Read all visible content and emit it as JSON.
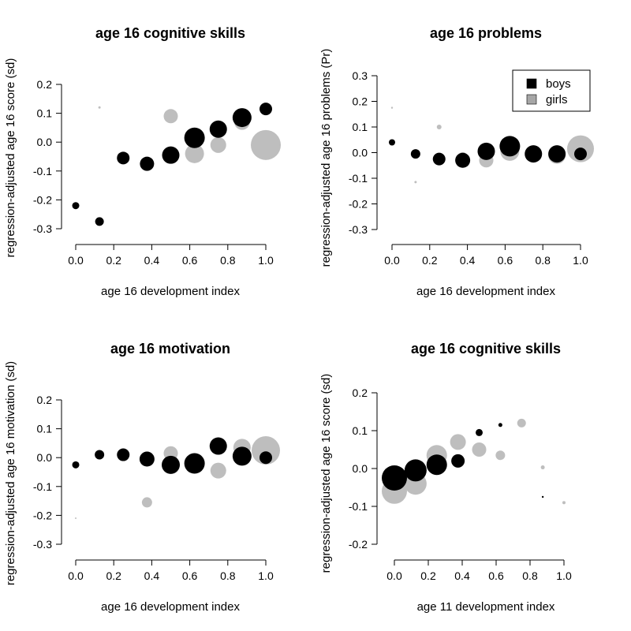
{
  "chart_data": [
    {
      "type": "scatter",
      "title": "age 16 cognitive skills",
      "xlabel": "age 16 development index",
      "ylabel": "regression-adjusted age 16 score (sd)",
      "xlim": [
        0,
        1
      ],
      "ylim": [
        -0.3,
        0.2
      ],
      "xticks": [
        0,
        0.2,
        0.4,
        0.6,
        0.8,
        1
      ],
      "xtick_labels": [
        "0.0",
        "0.2",
        "0.4",
        "0.6",
        "0.8",
        "1.0"
      ],
      "yticks": [
        -0.3,
        -0.2,
        -0.1,
        0,
        0.1,
        0.2
      ],
      "ytick_labels": [
        "-0.3",
        "-0.2",
        "-0.1",
        "0.0",
        "0.1",
        "0.2"
      ],
      "grid": false,
      "legend": null,
      "series": [
        {
          "color": "#bebebe",
          "points": [
            {
              "x": 0.125,
              "y": 0.12,
              "size": 1.5
            },
            {
              "x": 0.5,
              "y": 0.09,
              "size": 9
            },
            {
              "x": 0.625,
              "y": -0.04,
              "size": 12
            },
            {
              "x": 0.75,
              "y": -0.01,
              "size": 10
            },
            {
              "x": 0.875,
              "y": 0.07,
              "size": 10
            },
            {
              "x": 1.0,
              "y": -0.01,
              "size": 19
            }
          ]
        },
        {
          "color": "#000000",
          "points": [
            {
              "x": 0.0,
              "y": -0.22,
              "size": 4.5
            },
            {
              "x": 0.125,
              "y": -0.275,
              "size": 5.5
            },
            {
              "x": 0.25,
              "y": -0.055,
              "size": 8
            },
            {
              "x": 0.375,
              "y": -0.075,
              "size": 9
            },
            {
              "x": 0.5,
              "y": -0.045,
              "size": 11
            },
            {
              "x": 0.625,
              "y": 0.015,
              "size": 13
            },
            {
              "x": 0.75,
              "y": 0.045,
              "size": 11
            },
            {
              "x": 0.875,
              "y": 0.085,
              "size": 12
            },
            {
              "x": 1.0,
              "y": 0.115,
              "size": 8
            }
          ]
        }
      ]
    },
    {
      "type": "scatter",
      "title": "age 16 problems",
      "xlabel": "age 16 development index",
      "ylabel": "regression-adjusted age 16 problems (Pr)",
      "xlim": [
        0,
        1
      ],
      "ylim": [
        -0.3,
        0.3
      ],
      "xticks": [
        0,
        0.2,
        0.4,
        0.6,
        0.8,
        1
      ],
      "xtick_labels": [
        "0.0",
        "0.2",
        "0.4",
        "0.6",
        "0.8",
        "1.0"
      ],
      "yticks": [
        -0.3,
        -0.2,
        -0.1,
        0,
        0.1,
        0.2,
        0.3
      ],
      "ytick_labels": [
        "-0.3",
        "-0.2",
        "-0.1",
        "0.0",
        "0.1",
        "0.2",
        "0.3"
      ],
      "grid": false,
      "legend": {
        "placement": "top-right",
        "entries": [
          {
            "label": "boys",
            "color": "#000000"
          },
          {
            "label": "girls",
            "color": "#a6a6a6"
          }
        ]
      },
      "series": [
        {
          "name": "girls",
          "color": "#bebebe",
          "points": [
            {
              "x": 0.0,
              "y": 0.175,
              "size": 1.2
            },
            {
              "x": 0.125,
              "y": -0.115,
              "size": 1.5
            },
            {
              "x": 0.25,
              "y": 0.1,
              "size": 3
            },
            {
              "x": 0.375,
              "y": -0.02,
              "size": 7
            },
            {
              "x": 0.5,
              "y": -0.03,
              "size": 9
            },
            {
              "x": 0.625,
              "y": 0.005,
              "size": 12
            },
            {
              "x": 0.75,
              "y": -0.005,
              "size": 10
            },
            {
              "x": 0.875,
              "y": -0.01,
              "size": 11
            },
            {
              "x": 1.0,
              "y": 0.015,
              "size": 17
            }
          ]
        },
        {
          "name": "boys",
          "color": "#000000",
          "points": [
            {
              "x": 0.0,
              "y": 0.04,
              "size": 4
            },
            {
              "x": 0.125,
              "y": -0.005,
              "size": 6
            },
            {
              "x": 0.25,
              "y": -0.025,
              "size": 8
            },
            {
              "x": 0.375,
              "y": -0.03,
              "size": 9.5
            },
            {
              "x": 0.5,
              "y": 0.005,
              "size": 11
            },
            {
              "x": 0.625,
              "y": 0.025,
              "size": 13
            },
            {
              "x": 0.75,
              "y": -0.005,
              "size": 11
            },
            {
              "x": 0.875,
              "y": -0.005,
              "size": 11
            },
            {
              "x": 1.0,
              "y": -0.005,
              "size": 8
            }
          ]
        }
      ]
    },
    {
      "type": "scatter",
      "title": "age 16 motivation",
      "xlabel": "age 16 development index",
      "ylabel": "regression-adjusted age 16 motivation (sd)",
      "xlim": [
        0,
        1
      ],
      "ylim": [
        -0.3,
        0.2
      ],
      "xticks": [
        0,
        0.2,
        0.4,
        0.6,
        0.8,
        1
      ],
      "xtick_labels": [
        "0.0",
        "0.2",
        "0.4",
        "0.6",
        "0.8",
        "1.0"
      ],
      "yticks": [
        -0.3,
        -0.2,
        -0.1,
        0,
        0.1,
        0.2
      ],
      "ytick_labels": [
        "-0.3",
        "-0.2",
        "-0.1",
        "0.0",
        "0.1",
        "0.2"
      ],
      "grid": false,
      "legend": null,
      "series": [
        {
          "color": "#bebebe",
          "points": [
            {
              "x": 0.0,
              "y": -0.21,
              "size": 1
            },
            {
              "x": 0.375,
              "y": -0.155,
              "size": 6.5
            },
            {
              "x": 0.5,
              "y": 0.015,
              "size": 9
            },
            {
              "x": 0.625,
              "y": -0.015,
              "size": 11
            },
            {
              "x": 0.75,
              "y": -0.045,
              "size": 10
            },
            {
              "x": 0.875,
              "y": 0.035,
              "size": 11
            },
            {
              "x": 1.0,
              "y": 0.025,
              "size": 18
            }
          ]
        },
        {
          "color": "#000000",
          "points": [
            {
              "x": 0.0,
              "y": -0.025,
              "size": 4.5
            },
            {
              "x": 0.125,
              "y": 0.01,
              "size": 6
            },
            {
              "x": 0.25,
              "y": 0.01,
              "size": 8
            },
            {
              "x": 0.375,
              "y": -0.005,
              "size": 9.5
            },
            {
              "x": 0.5,
              "y": -0.025,
              "size": 11.5
            },
            {
              "x": 0.625,
              "y": -0.02,
              "size": 13
            },
            {
              "x": 0.75,
              "y": 0.04,
              "size": 11
            },
            {
              "x": 0.875,
              "y": 0.005,
              "size": 12
            },
            {
              "x": 1.0,
              "y": 0.0,
              "size": 8
            }
          ]
        }
      ]
    },
    {
      "type": "scatter",
      "title": "age 16 cognitive skills",
      "xlabel": "age 11 development index",
      "ylabel": "regression-adjusted age 16 score (sd)",
      "xlim": [
        0,
        1
      ],
      "ylim": [
        -0.2,
        0.2
      ],
      "xticks": [
        0,
        0.2,
        0.4,
        0.6,
        0.8,
        1
      ],
      "xtick_labels": [
        "0.0",
        "0.2",
        "0.4",
        "0.6",
        "0.8",
        "1.0"
      ],
      "yticks": [
        -0.2,
        -0.1,
        0,
        0.1,
        0.2
      ],
      "ytick_labels": [
        "-0.2",
        "-0.1",
        "0.0",
        "0.1",
        "0.2"
      ],
      "grid": false,
      "legend": null,
      "series": [
        {
          "color": "#bebebe",
          "points": [
            {
              "x": 0.0,
              "y": -0.06,
              "size": 16
            },
            {
              "x": 0.125,
              "y": -0.04,
              "size": 14
            },
            {
              "x": 0.25,
              "y": 0.035,
              "size": 13
            },
            {
              "x": 0.375,
              "y": 0.07,
              "size": 10
            },
            {
              "x": 0.5,
              "y": 0.05,
              "size": 9
            },
            {
              "x": 0.625,
              "y": 0.035,
              "size": 6
            },
            {
              "x": 0.75,
              "y": 0.12,
              "size": 5.5
            },
            {
              "x": 0.875,
              "y": 0.003,
              "size": 2.5
            },
            {
              "x": 1.0,
              "y": -0.09,
              "size": 2
            }
          ]
        },
        {
          "color": "#000000",
          "points": [
            {
              "x": 0.0,
              "y": -0.025,
              "size": 16
            },
            {
              "x": 0.125,
              "y": -0.005,
              "size": 14
            },
            {
              "x": 0.25,
              "y": 0.01,
              "size": 13
            },
            {
              "x": 0.375,
              "y": 0.02,
              "size": 8.5
            },
            {
              "x": 0.5,
              "y": 0.095,
              "size": 4.5
            },
            {
              "x": 0.625,
              "y": 0.115,
              "size": 2.5
            },
            {
              "x": 0.875,
              "y": -0.075,
              "size": 1.2
            }
          ]
        }
      ]
    }
  ]
}
